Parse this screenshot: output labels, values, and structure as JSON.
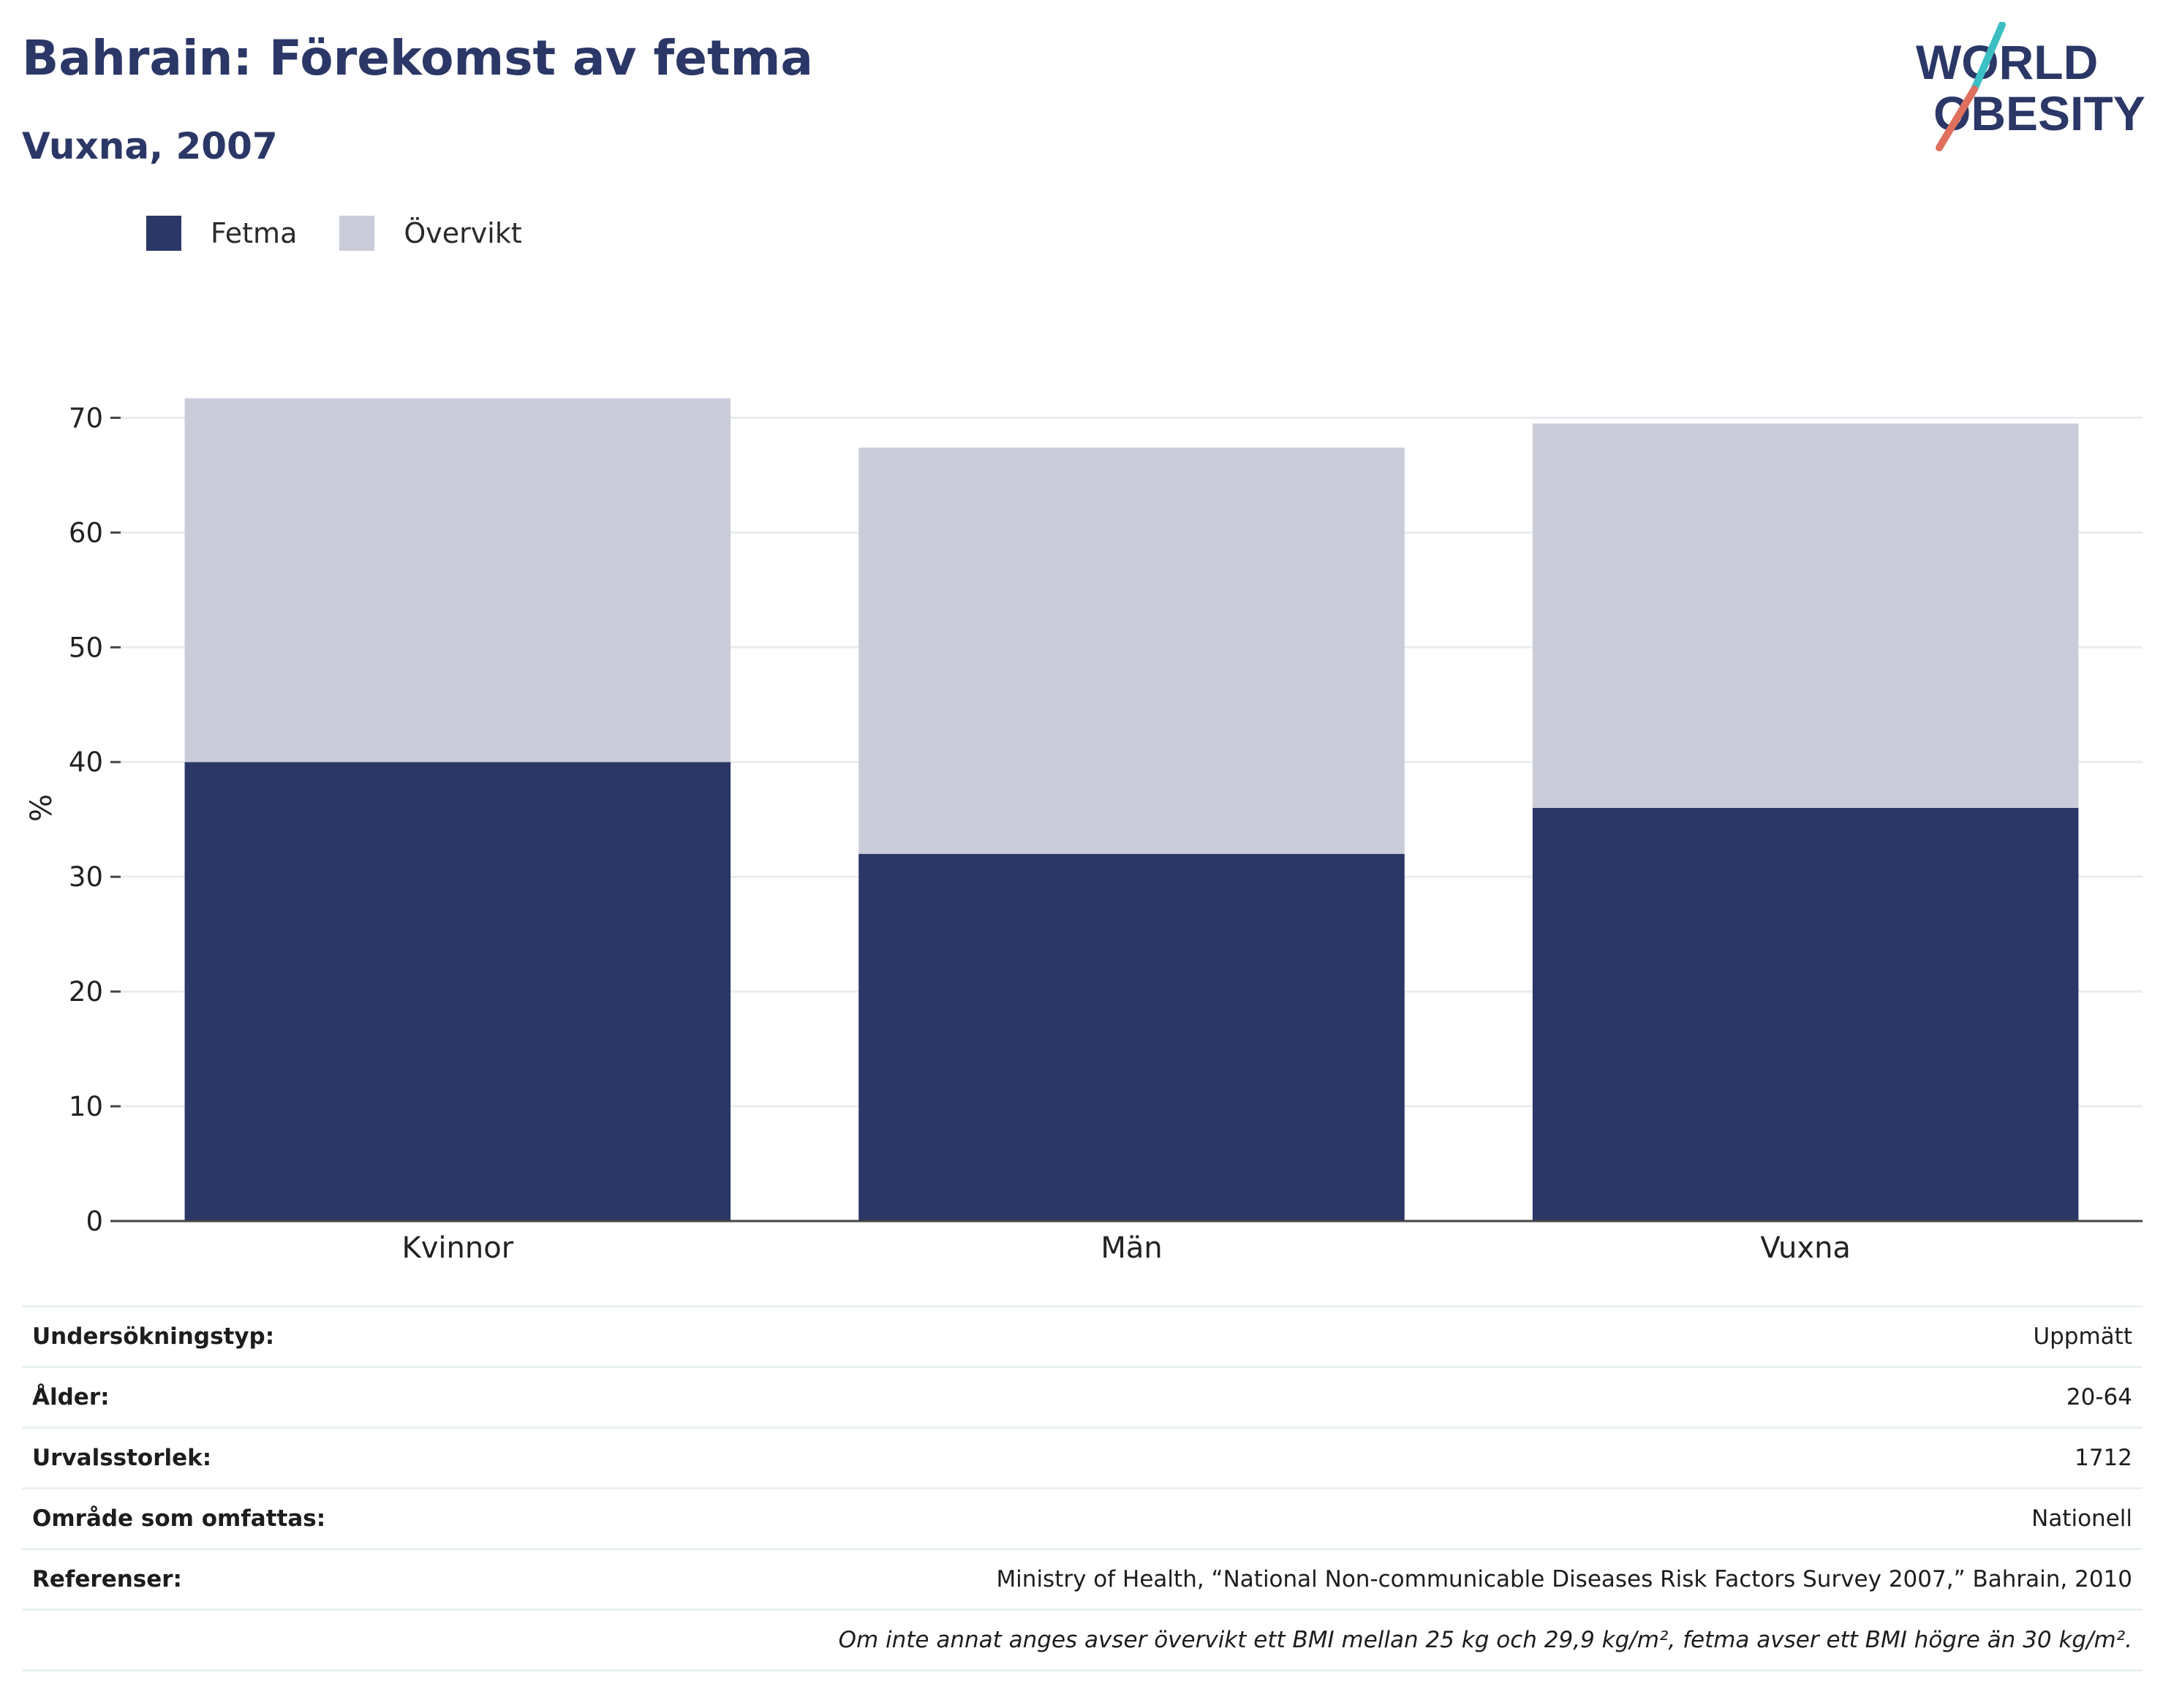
{
  "header": {
    "title": "Bahrain: Förekomst av fetma",
    "subtitle": "Vuxna, 2007"
  },
  "logo": {
    "line1": "WORLD",
    "line2": "OBESITY",
    "icon": "world-obesity-logo"
  },
  "colors": {
    "fetma": "#2b3766",
    "overvikt": "#cacdd9",
    "text": "#2b3766",
    "logo_teal": "#3bbfc5",
    "logo_coral": "#e0705e"
  },
  "legend": {
    "items": [
      {
        "label": "Fetma",
        "color": "#2b3766"
      },
      {
        "label": "Övervikt",
        "color": "#cacdd9"
      }
    ]
  },
  "chart_data": {
    "type": "bar",
    "stacked": true,
    "categories": [
      "Kvinnor",
      "Män",
      "Vuxna"
    ],
    "series": [
      {
        "name": "Fetma",
        "values": [
          40.0,
          32.0,
          36.0
        ],
        "color": "#2b3766"
      },
      {
        "name": "Övervikt",
        "values": [
          31.7,
          35.4,
          33.5
        ],
        "color": "#cacdd9"
      }
    ],
    "ylabel": "%",
    "ylim": [
      0,
      72
    ],
    "yticks": [
      0,
      10,
      20,
      30,
      40,
      50,
      60,
      70
    ],
    "grid": true,
    "legend_position": "top-left"
  },
  "info": {
    "rows": [
      {
        "label": "Undersökningstyp:",
        "value": "Uppmätt"
      },
      {
        "label": "Ålder:",
        "value": "20-64"
      },
      {
        "label": "Urvalsstorlek:",
        "value": "1712"
      },
      {
        "label": "Område som omfattas:",
        "value": "Nationell"
      },
      {
        "label": "Referenser:",
        "value": "Ministry of Health, “National Non-communicable Diseases Risk Factors Survey 2007,” Bahrain, 2010"
      }
    ],
    "note": "Om inte annat anges avser övervikt ett BMI mellan 25 kg och 29,9 kg/m², fetma avser ett BMI högre än 30 kg/m²."
  }
}
